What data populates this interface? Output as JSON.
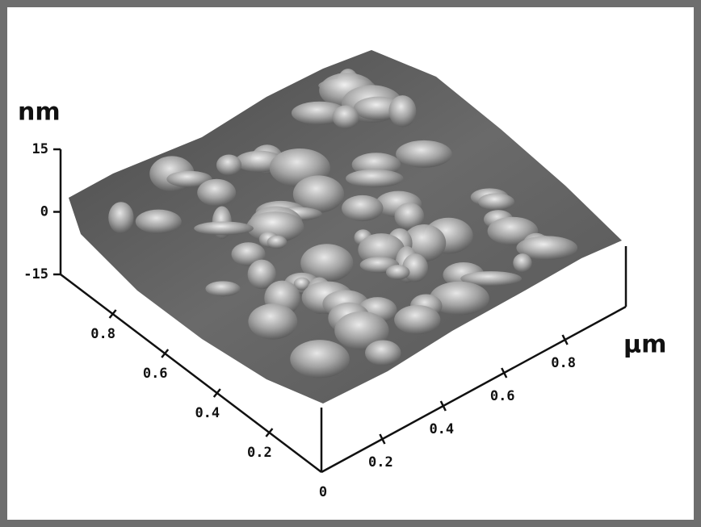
{
  "chart_data": {
    "type": "surface",
    "z_label": "nm",
    "x_label": "μm",
    "zlim": [
      -15,
      15
    ],
    "zticks": [
      -15,
      0,
      15
    ],
    "xlim": [
      0,
      1
    ],
    "xticks": [
      0,
      0.2,
      0.4,
      0.6,
      0.8
    ],
    "ylim": [
      0,
      1
    ],
    "yticks": [
      0.2,
      0.4,
      0.6,
      0.8
    ]
  }
}
